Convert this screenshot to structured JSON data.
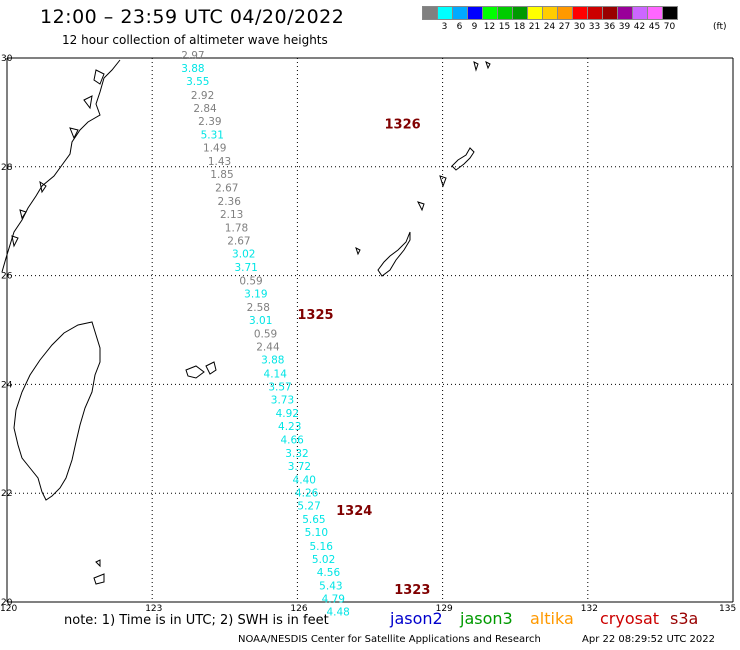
{
  "header": {
    "title": "12:00 – 23:59 UTC 04/20/2022",
    "subtitle": "12 hour collection of altimeter wave heights"
  },
  "legend": {
    "colors": [
      "#808080",
      "#00ffff",
      "#00aaff",
      "#0000ff",
      "#00ff00",
      "#00cc00",
      "#009900",
      "#ffff00",
      "#ffcc00",
      "#ff9900",
      "#ff0000",
      "#cc0000",
      "#990000",
      "#990099",
      "#cc66ff",
      "#ff66ff",
      "#000000"
    ],
    "labels": [
      "3",
      "6",
      "9",
      "12",
      "15",
      "18",
      "21",
      "24",
      "27",
      "30",
      "33",
      "36",
      "39",
      "42",
      "45",
      "70"
    ],
    "unit": "(ft)"
  },
  "map": {
    "lon_ticks": [
      "120",
      "123",
      "126",
      "129",
      "132",
      "135"
    ],
    "lat_ticks": [
      "30",
      "28",
      "26",
      "24",
      "22",
      "20"
    ],
    "lon_range": [
      120,
      135
    ],
    "lat_range": [
      20,
      30
    ]
  },
  "track": {
    "passes": [
      {
        "label": "1326",
        "lon": 127.8,
        "lat": 28.7
      },
      {
        "label": "1325",
        "lon": 126.0,
        "lat": 25.2
      },
      {
        "label": "1324",
        "lon": 126.8,
        "lat": 21.6
      },
      {
        "label": "1323",
        "lon": 128.0,
        "lat": 20.15
      }
    ],
    "points": [
      {
        "v": "2.97",
        "lat": 29.98,
        "lon": 123.6,
        "c": "gray"
      },
      {
        "v": "3.88",
        "lat": 29.74,
        "lon": 123.6,
        "c": "cyan"
      },
      {
        "v": "3.55",
        "lat": 29.5,
        "lon": 123.7,
        "c": "cyan"
      },
      {
        "v": "2.92",
        "lat": 29.25,
        "lon": 123.8,
        "c": "gray"
      },
      {
        "v": "2.84",
        "lat": 29.01,
        "lon": 123.85,
        "c": "gray"
      },
      {
        "v": "2.39",
        "lat": 28.77,
        "lon": 123.95,
        "c": "gray"
      },
      {
        "v": "5.31",
        "lat": 28.52,
        "lon": 124.0,
        "c": "cyan"
      },
      {
        "v": "1.49",
        "lat": 28.28,
        "lon": 124.05,
        "c": "gray"
      },
      {
        "v": "1.43",
        "lat": 28.03,
        "lon": 124.15,
        "c": "gray"
      },
      {
        "v": "1.85",
        "lat": 27.79,
        "lon": 124.2,
        "c": "gray"
      },
      {
        "v": "2.67",
        "lat": 27.55,
        "lon": 124.3,
        "c": "gray"
      },
      {
        "v": "2.36",
        "lat": 27.3,
        "lon": 124.35,
        "c": "gray"
      },
      {
        "v": "2.13",
        "lat": 27.06,
        "lon": 124.4,
        "c": "gray"
      },
      {
        "v": "1.78",
        "lat": 26.81,
        "lon": 124.5,
        "c": "gray"
      },
      {
        "v": "2.67",
        "lat": 26.57,
        "lon": 124.55,
        "c": "gray"
      },
      {
        "v": "3.02",
        "lat": 26.33,
        "lon": 124.65,
        "c": "cyan"
      },
      {
        "v": "3.71",
        "lat": 26.08,
        "lon": 124.7,
        "c": "cyan"
      },
      {
        "v": "0.59",
        "lat": 25.84,
        "lon": 124.8,
        "c": "gray"
      },
      {
        "v": "3.19",
        "lat": 25.6,
        "lon": 124.9,
        "c": "cyan"
      },
      {
        "v": "2.58",
        "lat": 25.35,
        "lon": 124.95,
        "c": "gray"
      },
      {
        "v": "3.01",
        "lat": 25.11,
        "lon": 125.0,
        "c": "cyan"
      },
      {
        "v": "0.59",
        "lat": 24.86,
        "lon": 125.1,
        "c": "gray"
      },
      {
        "v": "2.44",
        "lat": 24.62,
        "lon": 125.15,
        "c": "gray"
      },
      {
        "v": "3.88",
        "lat": 24.38,
        "lon": 125.25,
        "c": "cyan"
      },
      {
        "v": "4.14",
        "lat": 24.13,
        "lon": 125.3,
        "c": "cyan"
      },
      {
        "v": "3.57",
        "lat": 23.89,
        "lon": 125.4,
        "c": "cyan"
      },
      {
        "v": "3.73",
        "lat": 23.65,
        "lon": 125.45,
        "c": "cyan"
      },
      {
        "v": "4.92",
        "lat": 23.4,
        "lon": 125.55,
        "c": "cyan"
      },
      {
        "v": "4.23",
        "lat": 23.16,
        "lon": 125.6,
        "c": "cyan"
      },
      {
        "v": "4.66",
        "lat": 22.91,
        "lon": 125.65,
        "c": "cyan"
      },
      {
        "v": "3.32",
        "lat": 22.67,
        "lon": 125.75,
        "c": "cyan"
      },
      {
        "v": "3.72",
        "lat": 22.43,
        "lon": 125.8,
        "c": "cyan"
      },
      {
        "v": "4.40",
        "lat": 22.18,
        "lon": 125.9,
        "c": "cyan"
      },
      {
        "v": "4.26",
        "lat": 21.94,
        "lon": 125.95,
        "c": "cyan"
      },
      {
        "v": "5.27",
        "lat": 21.7,
        "lon": 126.0,
        "c": "cyan"
      },
      {
        "v": "5.65",
        "lat": 21.45,
        "lon": 126.1,
        "c": "cyan"
      },
      {
        "v": "5.10",
        "lat": 21.21,
        "lon": 126.15,
        "c": "cyan"
      },
      {
        "v": "5.16",
        "lat": 20.96,
        "lon": 126.25,
        "c": "cyan"
      },
      {
        "v": "5.02",
        "lat": 20.72,
        "lon": 126.3,
        "c": "cyan"
      },
      {
        "v": "4.56",
        "lat": 20.48,
        "lon": 126.4,
        "c": "cyan"
      },
      {
        "v": "5.43",
        "lat": 20.23,
        "lon": 126.45,
        "c": "cyan"
      },
      {
        "v": "4.79",
        "lat": 19.99,
        "lon": 126.5,
        "c": "cyan"
      },
      {
        "v": "4.48",
        "lat": 19.75,
        "lon": 126.6,
        "c": "cyan"
      }
    ],
    "colors": {
      "gray": "#808080",
      "cyan": "#00e5e5",
      "pass": "#800000"
    }
  },
  "footer": {
    "note": "note:  1) Time is in UTC;  2) SWH is in feet",
    "satellites": [
      {
        "name": "jason2",
        "color": "#0000cc"
      },
      {
        "name": "jason3",
        "color": "#009900"
      },
      {
        "name": "altika",
        "color": "#ff9900"
      },
      {
        "name": "cryosat",
        "color": "#cc0000"
      },
      {
        "name": "s3a",
        "color": "#990000"
      }
    ],
    "credit": "NOAA/NESDIS Center for Satellite Applications and Research",
    "timestamp": "Apr 22 08:29:52 UTC 2022"
  }
}
